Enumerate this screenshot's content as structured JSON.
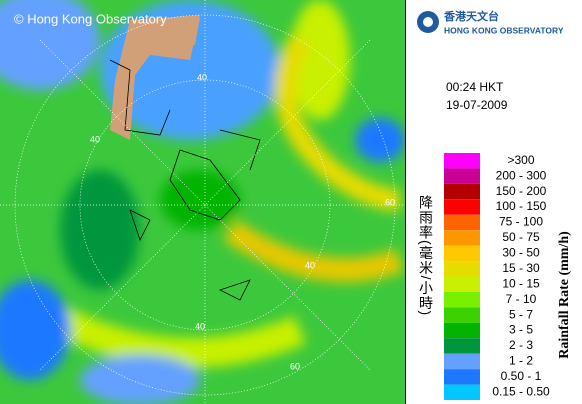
{
  "header": {
    "copyright": "© Hong Kong Observatory",
    "logo_chinese": "香港天文台",
    "logo_english": "HONG KONG OBSERVATORY"
  },
  "time": "00:24 HKT",
  "date": "19-07-2009",
  "legend": {
    "title_chinese": "降雨率(毫米/小時)",
    "title_english": "Rainfall Rate (mm/h)",
    "items": [
      {
        "label": ">300",
        "color": "#ff00ff"
      },
      {
        "label": "200 - 300",
        "color": "#c80096"
      },
      {
        "label": "150 - 200",
        "color": "#b40000"
      },
      {
        "label": "100 - 150",
        "color": "#ff0000"
      },
      {
        "label": "75 - 100",
        "color": "#ff6400"
      },
      {
        "label": "50 - 75",
        "color": "#ff9600"
      },
      {
        "label": "30 - 50",
        "color": "#ffc800"
      },
      {
        "label": "15 - 30",
        "color": "#e6dc00"
      },
      {
        "label": "10 - 15",
        "color": "#c8f000"
      },
      {
        "label": "7 - 10",
        "color": "#78f000"
      },
      {
        "label": "5 - 7",
        "color": "#3cd200"
      },
      {
        "label": "3 - 5",
        "color": "#00b400"
      },
      {
        "label": "2 - 3",
        "color": "#00963c"
      },
      {
        "label": "1 - 2",
        "color": "#64a0ff"
      },
      {
        "label": "0.50 - 1",
        "color": "#1e78ff"
      },
      {
        "label": "0.15 - 0.50",
        "color": "#00c8ff"
      }
    ]
  },
  "range_labels": [
    "40",
    "40",
    "60",
    "40",
    "40",
    "60"
  ]
}
